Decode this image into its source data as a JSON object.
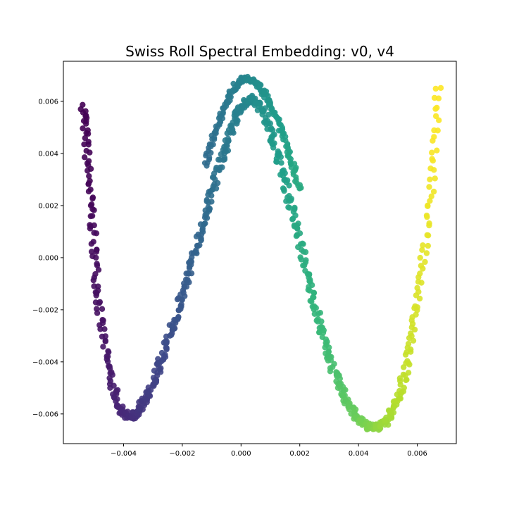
{
  "chart_data": {
    "type": "scatter",
    "title": "Swiss Roll Spectral Embedding: v0, v4",
    "xlabel": "",
    "ylabel": "",
    "xlim": [
      -0.00605,
      0.00733
    ],
    "ylim": [
      -0.00714,
      0.00754
    ],
    "xticks": [
      -0.004,
      -0.002,
      0.0,
      0.002,
      0.004,
      0.006
    ],
    "yticks": [
      -0.006,
      -0.004,
      -0.002,
      0.0,
      0.002,
      0.004,
      0.006
    ],
    "xtick_labels": [
      "−0.004",
      "−0.002",
      "0.000",
      "0.002",
      "0.004",
      "0.006"
    ],
    "ytick_labels": [
      "−0.006",
      "−0.004",
      "−0.002",
      "0.000",
      "0.002",
      "0.004",
      "0.006"
    ],
    "grid": false,
    "colormap": "viridis",
    "color_by": "position along the roll",
    "curve": {
      "description": "points lie along a wave-shaped band, colored from dark purple (left) to yellow (right)",
      "x": [
        -0.00535,
        -0.0053,
        -0.0052,
        -0.0051,
        -0.005,
        -0.0049,
        -0.0048,
        -0.0046,
        -0.0044,
        -0.0042,
        -0.004,
        -0.0038,
        -0.0036,
        -0.0034,
        -0.0032,
        -0.003,
        -0.0028,
        -0.0026,
        -0.0024,
        -0.0022,
        -0.002,
        -0.0018,
        -0.0016,
        -0.0014,
        -0.0012,
        -0.001,
        -0.0008,
        -0.0006,
        -0.0004,
        -0.0002,
        0.0,
        0.0002,
        0.0004,
        0.0006,
        0.0008,
        0.001,
        0.0012,
        0.0014,
        0.0016,
        0.0018,
        0.002,
        0.0022,
        0.0024,
        0.0026,
        0.0028,
        0.003,
        0.0032,
        0.0034,
        0.0036,
        0.0038,
        0.004,
        0.0042,
        0.0044,
        0.0046,
        0.0048,
        0.005,
        0.0052,
        0.0054,
        0.0056,
        0.0058,
        0.006,
        0.0062,
        0.0064,
        0.0066,
        0.0067
      ],
      "y": [
        0.0058,
        0.0048,
        0.0033,
        0.0018,
        0.0004,
        -0.001,
        -0.0023,
        -0.0037,
        -0.0048,
        -0.0056,
        -0.006,
        -0.0061,
        -0.006,
        -0.0057,
        -0.0053,
        -0.0048,
        -0.0042,
        -0.0036,
        -0.0029,
        -0.0022,
        -0.0014,
        -0.0007,
        0.0001,
        0.0009,
        0.0017,
        0.0025,
        0.0033,
        0.004,
        0.0047,
        0.0053,
        0.0058,
        0.006,
        0.0061,
        0.0059,
        0.0055,
        0.0049,
        0.0041,
        0.0033,
        0.0024,
        0.0015,
        0.0006,
        -0.0004,
        -0.0013,
        -0.0022,
        -0.003,
        -0.0038,
        -0.0045,
        -0.005,
        -0.0055,
        -0.0059,
        -0.0062,
        -0.0064,
        -0.0065,
        -0.0065,
        -0.0064,
        -0.0062,
        -0.0058,
        -0.0052,
        -0.0043,
        -0.0032,
        -0.0018,
        -0.0001,
        0.0019,
        0.0041,
        0.0066
      ]
    },
    "upper_arc": {
      "description": "second upper strand of points near the central peak",
      "x": [
        -0.0012,
        -0.001,
        -0.0008,
        -0.0006,
        -0.0004,
        -0.0002,
        0.0,
        0.0002,
        0.0004,
        0.0006,
        0.0008,
        0.001,
        0.0012,
        0.0014,
        0.0016,
        0.0018,
        0.002
      ],
      "y": [
        0.0036,
        0.0044,
        0.0051,
        0.0057,
        0.0062,
        0.0066,
        0.0068,
        0.0069,
        0.0068,
        0.0066,
        0.0063,
        0.0059,
        0.0054,
        0.0048,
        0.0041,
        0.0034,
        0.0026
      ]
    }
  }
}
